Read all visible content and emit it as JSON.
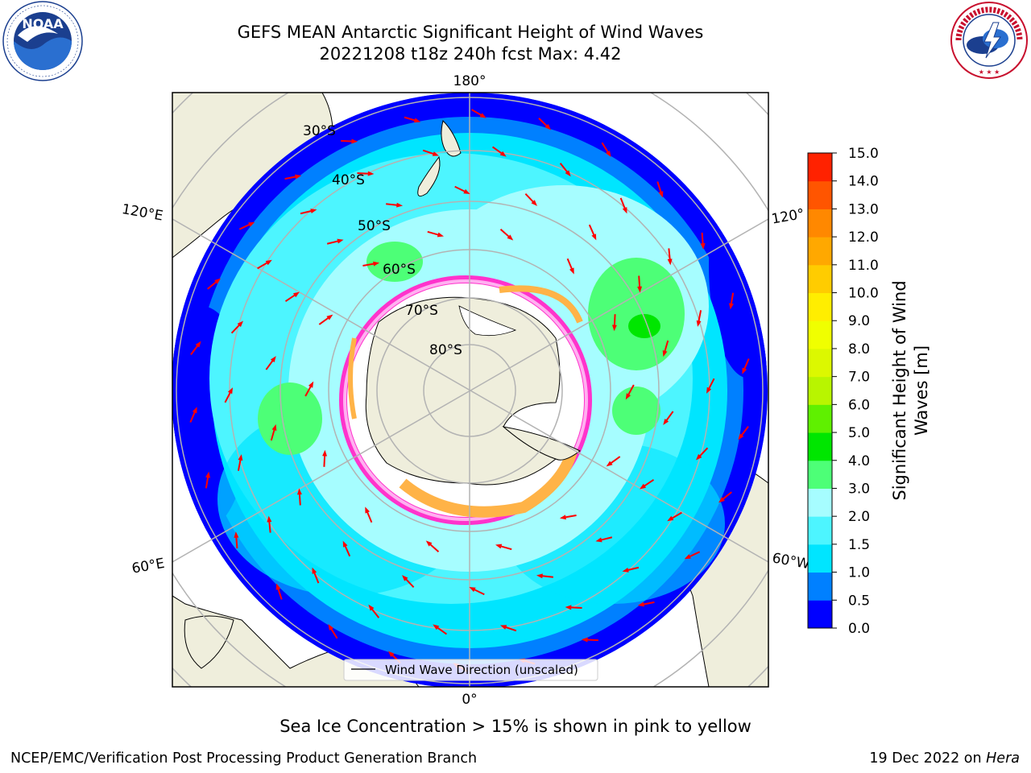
{
  "title_line1": "GEFS MEAN Antarctic Significant Height of Wind Waves",
  "title_line2": "20221208 t18z 240h fcst   Max: 4.42",
  "logos": {
    "left": "NOAA",
    "right": "NATIONAL WEATHER SERVICE"
  },
  "map": {
    "projection": "south-polar-stereographic",
    "longitude_labels": {
      "top": "180°",
      "bottom": "0°",
      "upper_left": "120°E",
      "upper_right": "120°",
      "lower_left": "60°E",
      "lower_right": "60°W"
    },
    "latitude_labels": [
      "30°S",
      "40°S",
      "50°S",
      "60°S",
      "70°S",
      "80°S"
    ],
    "legend": "Wind Wave Direction (unscaled)",
    "colors": {
      "land": "#efeedc",
      "sea_ice": "#ffffff",
      "ice_edge_pink": "#ff33cc",
      "arrows": "#ff0000",
      "grid": "#b3b3b3"
    }
  },
  "colorbar": {
    "label_line1": "Significant Height of Wind",
    "label_line2": "Waves [m]",
    "ticks": [
      "0.0",
      "0.5",
      "1.0",
      "1.5",
      "2.0",
      "3.0",
      "4.0",
      "5.0",
      "6.0",
      "7.0",
      "8.0",
      "9.0",
      "10.0",
      "11.0",
      "12.0",
      "13.0",
      "14.0",
      "15.0"
    ],
    "colors": [
      "#0000ff",
      "#0080ff",
      "#00e5ff",
      "#4df5ff",
      "#a6fdff",
      "#4dff77",
      "#00e600",
      "#5ff000",
      "#b8f500",
      "#dcf800",
      "#f0ff00",
      "#ffee00",
      "#ffcc00",
      "#ffa800",
      "#ff8800",
      "#ff5500",
      "#ff2200"
    ]
  },
  "subtitle": "Sea Ice Concentration > 15% is shown in pink to yellow",
  "footer_left": "NCEP/EMC/Verification Post Processing Product Generation Branch",
  "footer_right_date": "19 Dec 2022 on ",
  "footer_right_host": "Hera"
}
